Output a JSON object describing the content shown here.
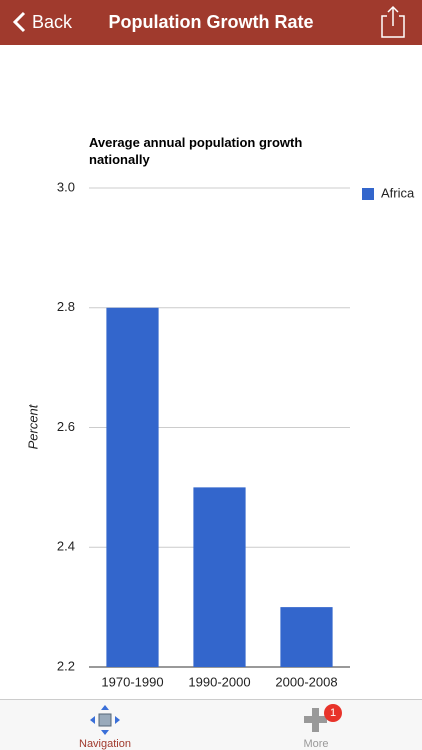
{
  "header": {
    "back": "Back",
    "title": "Population Growth Rate"
  },
  "chart_data": {
    "type": "bar",
    "title": "Average annual population growth nationally",
    "y_label": "Percent",
    "categories": [
      "1970-1990",
      "1990-2000",
      "2000-2008"
    ],
    "series": [
      {
        "name": "Africa",
        "color": "#3366cc",
        "values": [
          2.8,
          2.5,
          2.3
        ]
      }
    ],
    "ylim": [
      2.2,
      3.0
    ],
    "yticks": [
      2.2,
      2.4,
      2.6,
      2.8,
      {
        "value": 3.0,
        "label": "3.0"
      }
    ],
    "grid": true,
    "legend": "right"
  },
  "tab_bar": {
    "items": [
      "Navigation",
      "More"
    ],
    "badge": 1
  }
}
